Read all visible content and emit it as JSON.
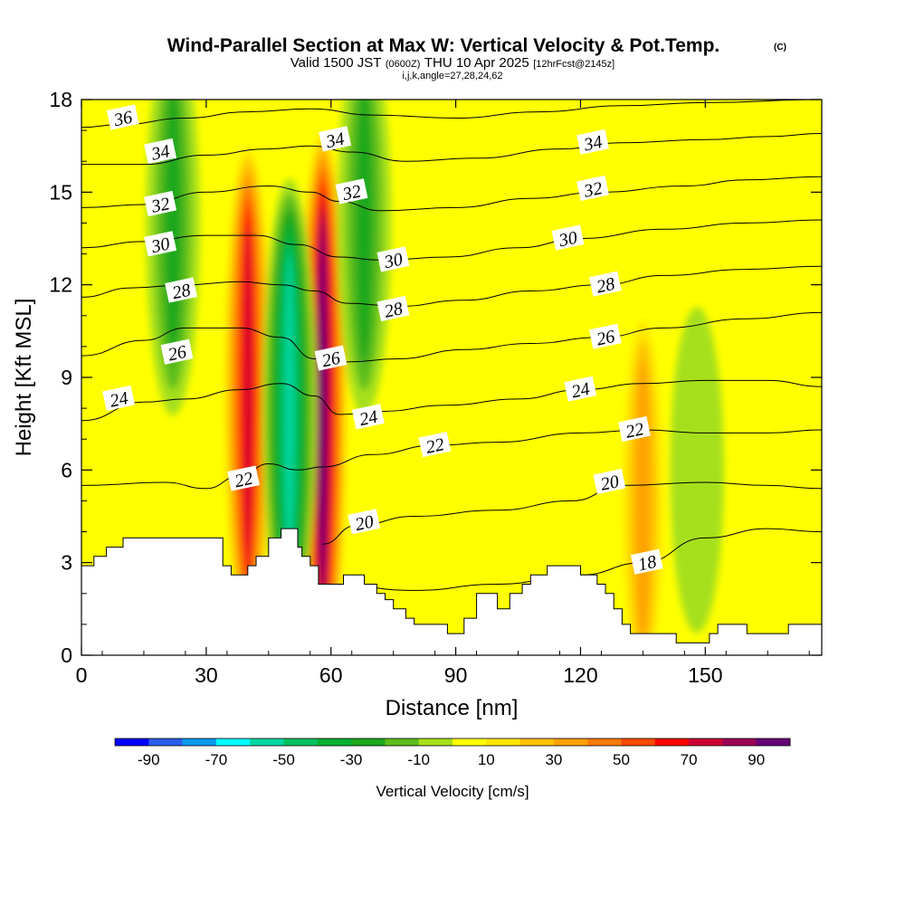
{
  "title": {
    "main": "Wind-Parallel Section at Max W: Vertical Velocity & Pot.Temp.",
    "copyright": "(C)",
    "valid_prefix": "Valid 1500 JST",
    "utc": "(0600Z)",
    "valid_suffix": "THU 10 Apr 2025",
    "forecast": "[12hrFcst@2145z]",
    "indices": "i,j,k,angle=27,28,24,62"
  },
  "chart_data": {
    "type": "heatmap",
    "xlabel": "Distance [nm]",
    "ylabel": "Height [Kft MSL]",
    "xlim": [
      0,
      178
    ],
    "ylim": [
      0,
      18
    ],
    "x_ticks": [
      0,
      30,
      60,
      90,
      120,
      150
    ],
    "y_ticks": [
      0,
      3,
      6,
      9,
      12,
      15,
      18
    ],
    "colorbar": {
      "label": "Vertical Velocity [cm/s]",
      "tick_labels": [
        "-90",
        "-70",
        "-50",
        "-30",
        "-10",
        "10",
        "30",
        "50",
        "70",
        "90"
      ],
      "bins": [
        -100,
        -90,
        -80,
        -70,
        -60,
        -50,
        -40,
        -30,
        -20,
        -10,
        0,
        10,
        20,
        30,
        40,
        50,
        60,
        70,
        80,
        90,
        100
      ],
      "colors": [
        "#0000ff",
        "#2a5cf0",
        "#0a9aef",
        "#00ffff",
        "#00d6a0",
        "#00c060",
        "#00b030",
        "#1aa81a",
        "#5cbd1a",
        "#a6e01a",
        "#ffff00",
        "#ffe600",
        "#ffc000",
        "#ffa000",
        "#ff7a00",
        "#ff4a00",
        "#ff0000",
        "#cc0033",
        "#990055",
        "#660077"
      ]
    },
    "vertical_velocity_features": [
      {
        "x": 40,
        "z": 8.5,
        "w": 75
      },
      {
        "x": 58,
        "z": 8,
        "w": 95
      },
      {
        "x": 50,
        "z": 8,
        "w": -55
      },
      {
        "x": 68,
        "z": 14,
        "w": -30
      },
      {
        "x": 22,
        "z": 14,
        "w": -30
      },
      {
        "x": 135,
        "z": 5,
        "w": 35
      },
      {
        "x": 148,
        "z": 6,
        "w": -10
      }
    ],
    "terrain": [
      [
        0,
        2.9
      ],
      [
        3,
        2.9
      ],
      [
        3,
        3.2
      ],
      [
        6,
        3.2
      ],
      [
        6,
        3.5
      ],
      [
        10,
        3.5
      ],
      [
        10,
        3.8
      ],
      [
        34,
        3.8
      ],
      [
        34,
        2.9
      ],
      [
        36,
        2.9
      ],
      [
        36,
        2.6
      ],
      [
        39,
        2.6
      ],
      [
        39,
        2.6
      ],
      [
        40,
        2.6
      ],
      [
        40,
        2.9
      ],
      [
        42,
        2.9
      ],
      [
        42,
        3.2
      ],
      [
        45,
        3.2
      ],
      [
        45,
        3.8
      ],
      [
        48,
        3.8
      ],
      [
        48,
        4.1
      ],
      [
        52,
        4.1
      ],
      [
        52,
        3.5
      ],
      [
        53,
        3.5
      ],
      [
        53,
        3.2
      ],
      [
        55,
        3.2
      ],
      [
        55,
        2.9
      ],
      [
        57,
        2.9
      ],
      [
        57,
        2.3
      ],
      [
        63,
        2.3
      ],
      [
        63,
        2.6
      ],
      [
        68,
        2.6
      ],
      [
        68,
        2.3
      ],
      [
        71,
        2.3
      ],
      [
        71,
        2.0
      ],
      [
        73,
        2.0
      ],
      [
        73,
        1.8
      ],
      [
        75,
        1.8
      ],
      [
        75,
        1.5
      ],
      [
        78,
        1.5
      ],
      [
        78,
        1.2
      ],
      [
        80,
        1.2
      ],
      [
        80,
        1.0
      ],
      [
        83,
        1.0
      ],
      [
        83,
        1.0
      ],
      [
        86,
        1.0
      ],
      [
        86,
        1.0
      ],
      [
        88,
        1.0
      ],
      [
        88,
        0.7
      ],
      [
        92,
        0.7
      ],
      [
        92,
        1.2
      ],
      [
        95,
        1.2
      ],
      [
        95,
        2.0
      ],
      [
        100,
        2.0
      ],
      [
        100,
        1.5
      ],
      [
        103,
        1.5
      ],
      [
        103,
        2.0
      ],
      [
        106,
        2.0
      ],
      [
        106,
        2.3
      ],
      [
        108,
        2.3
      ],
      [
        108,
        2.6
      ],
      [
        112,
        2.6
      ],
      [
        112,
        2.9
      ],
      [
        120,
        2.9
      ],
      [
        120,
        2.6
      ],
      [
        124,
        2.6
      ],
      [
        124,
        2.3
      ],
      [
        126,
        2.3
      ],
      [
        126,
        2.0
      ],
      [
        128,
        2.0
      ],
      [
        128,
        1.5
      ],
      [
        130,
        1.5
      ],
      [
        130,
        1.0
      ],
      [
        132,
        1.0
      ],
      [
        132,
        0.7
      ],
      [
        143,
        0.7
      ],
      [
        143,
        0.4
      ],
      [
        151,
        0.4
      ],
      [
        151,
        0.7
      ],
      [
        153,
        0.7
      ],
      [
        153,
        1.0
      ],
      [
        160,
        1.0
      ],
      [
        160,
        0.7
      ],
      [
        170,
        0.7
      ],
      [
        170,
        1.0
      ],
      [
        178,
        1.0
      ]
    ],
    "theta_contours": [
      {
        "level": 18,
        "points": [
          [
            60,
            2.3
          ],
          [
            80,
            2.1
          ],
          [
            100,
            2.3
          ],
          [
            120,
            2.6
          ],
          [
            135,
            3.0
          ],
          [
            150,
            3.8
          ],
          [
            165,
            4.1
          ],
          [
            178,
            4.0
          ]
        ]
      },
      {
        "level": 20,
        "points": [
          [
            58,
            3.6
          ],
          [
            66,
            4.2
          ],
          [
            80,
            4.5
          ],
          [
            100,
            4.7
          ],
          [
            118,
            5.0
          ],
          [
            130,
            5.5
          ],
          [
            150,
            5.6
          ],
          [
            165,
            5.5
          ],
          [
            178,
            5.4
          ]
        ]
      },
      {
        "level": 22,
        "points": [
          [
            0,
            5.5
          ],
          [
            20,
            5.6
          ],
          [
            30,
            5.4
          ],
          [
            38,
            5.8
          ],
          [
            45,
            6.2
          ],
          [
            52,
            6.0
          ],
          [
            58,
            6.1
          ],
          [
            70,
            6.5
          ],
          [
            85,
            6.8
          ],
          [
            100,
            6.9
          ],
          [
            120,
            7.2
          ],
          [
            135,
            7.3
          ],
          [
            150,
            7.2
          ],
          [
            165,
            7.2
          ],
          [
            178,
            7.3
          ]
        ]
      },
      {
        "level": 24,
        "points": [
          [
            0,
            7.6
          ],
          [
            15,
            8.2
          ],
          [
            25,
            8.3
          ],
          [
            38,
            8.6
          ],
          [
            48,
            8.8
          ],
          [
            56,
            8.4
          ],
          [
            62,
            7.8
          ],
          [
            72,
            7.9
          ],
          [
            88,
            8.1
          ],
          [
            105,
            8.3
          ],
          [
            120,
            8.6
          ],
          [
            135,
            8.8
          ],
          [
            150,
            8.9
          ],
          [
            165,
            8.9
          ],
          [
            178,
            8.7
          ]
        ]
      },
      {
        "level": 26,
        "points": [
          [
            0,
            9.7
          ],
          [
            15,
            10.2
          ],
          [
            25,
            10.6
          ],
          [
            38,
            10.6
          ],
          [
            48,
            10.3
          ],
          [
            56,
            9.6
          ],
          [
            64,
            9.5
          ],
          [
            76,
            9.6
          ],
          [
            92,
            9.9
          ],
          [
            108,
            10.1
          ],
          [
            125,
            10.3
          ],
          [
            140,
            10.6
          ],
          [
            160,
            10.9
          ],
          [
            178,
            11.1
          ]
        ]
      },
      {
        "level": 28,
        "points": [
          [
            0,
            11.6
          ],
          [
            12,
            11.9
          ],
          [
            25,
            12.0
          ],
          [
            38,
            12.1
          ],
          [
            48,
            12.0
          ],
          [
            56,
            11.8
          ],
          [
            64,
            11.4
          ],
          [
            76,
            11.3
          ],
          [
            92,
            11.5
          ],
          [
            108,
            11.8
          ],
          [
            125,
            12.0
          ],
          [
            140,
            12.3
          ],
          [
            160,
            12.5
          ],
          [
            178,
            12.6
          ]
        ]
      },
      {
        "level": 30,
        "points": [
          [
            0,
            13.2
          ],
          [
            15,
            13.4
          ],
          [
            30,
            13.6
          ],
          [
            42,
            13.6
          ],
          [
            52,
            13.3
          ],
          [
            62,
            12.9
          ],
          [
            72,
            12.8
          ],
          [
            88,
            12.9
          ],
          [
            105,
            13.2
          ],
          [
            120,
            13.5
          ],
          [
            140,
            13.8
          ],
          [
            160,
            14.0
          ],
          [
            178,
            14.1
          ]
        ]
      },
      {
        "level": 32,
        "points": [
          [
            0,
            14.5
          ],
          [
            15,
            14.6
          ],
          [
            30,
            15.0
          ],
          [
            45,
            15.2
          ],
          [
            55,
            15.0
          ],
          [
            62,
            14.7
          ],
          [
            72,
            14.4
          ],
          [
            90,
            14.5
          ],
          [
            108,
            14.8
          ],
          [
            125,
            15.0
          ],
          [
            145,
            15.2
          ],
          [
            160,
            15.4
          ],
          [
            178,
            15.5
          ]
        ]
      },
      {
        "level": 34,
        "points": [
          [
            0,
            15.9
          ],
          [
            15,
            15.9
          ],
          [
            30,
            16.2
          ],
          [
            45,
            16.4
          ],
          [
            55,
            16.5
          ],
          [
            65,
            16.3
          ],
          [
            78,
            16.0
          ],
          [
            95,
            16.1
          ],
          [
            115,
            16.4
          ],
          [
            130,
            16.6
          ],
          [
            150,
            16.7
          ],
          [
            165,
            16.8
          ],
          [
            178,
            16.9
          ]
        ]
      },
      {
        "level": 36,
        "points": [
          [
            0,
            17.1
          ],
          [
            10,
            17.2
          ],
          [
            25,
            17.4
          ],
          [
            40,
            17.6
          ],
          [
            55,
            17.7
          ],
          [
            70,
            17.5
          ],
          [
            90,
            17.4
          ],
          [
            110,
            17.6
          ],
          [
            130,
            17.8
          ],
          [
            150,
            17.9
          ],
          [
            178,
            18.0
          ]
        ]
      }
    ],
    "contour_labels": [
      {
        "text": "36",
        "x": 10,
        "z": 17.4
      },
      {
        "text": "34",
        "x": 19,
        "z": 16.3
      },
      {
        "text": "32",
        "x": 19,
        "z": 14.6
      },
      {
        "text": "30",
        "x": 19,
        "z": 13.3
      },
      {
        "text": "28",
        "x": 24,
        "z": 11.8
      },
      {
        "text": "26",
        "x": 23,
        "z": 9.8
      },
      {
        "text": "24",
        "x": 9,
        "z": 8.3
      },
      {
        "text": "22",
        "x": 39,
        "z": 5.7
      },
      {
        "text": "34",
        "x": 61,
        "z": 16.7
      },
      {
        "text": "32",
        "x": 65,
        "z": 15.0
      },
      {
        "text": "30",
        "x": 75,
        "z": 12.8
      },
      {
        "text": "28",
        "x": 75,
        "z": 11.2
      },
      {
        "text": "26",
        "x": 60,
        "z": 9.6
      },
      {
        "text": "24",
        "x": 69,
        "z": 7.7
      },
      {
        "text": "22",
        "x": 85,
        "z": 6.8
      },
      {
        "text": "20",
        "x": 68,
        "z": 4.3
      },
      {
        "text": "34",
        "x": 123,
        "z": 16.6
      },
      {
        "text": "32",
        "x": 123,
        "z": 15.1
      },
      {
        "text": "30",
        "x": 117,
        "z": 13.5
      },
      {
        "text": "28",
        "x": 126,
        "z": 12.0
      },
      {
        "text": "26",
        "x": 126,
        "z": 10.3
      },
      {
        "text": "24",
        "x": 120,
        "z": 8.6
      },
      {
        "text": "22",
        "x": 133,
        "z": 7.3
      },
      {
        "text": "20",
        "x": 127,
        "z": 5.6
      },
      {
        "text": "18",
        "x": 136,
        "z": 3.0
      }
    ]
  }
}
